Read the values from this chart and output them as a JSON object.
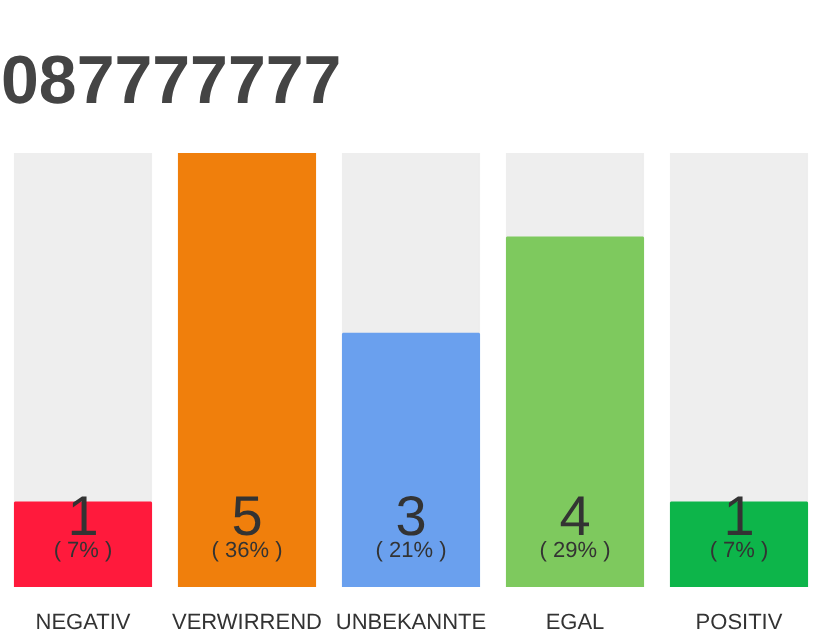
{
  "chart_data": {
    "type": "bar",
    "title": "087777777",
    "categories": [
      "NEGATIV",
      "VERWIRREND",
      "UNBEKANNTE",
      "EGAL",
      "POSITIV"
    ],
    "values": [
      7,
      36,
      21,
      29,
      7
    ],
    "colors": [
      "#ff1a3c",
      "#f07f0c",
      "#6aa0ee",
      "#7ec95e",
      "#0db54a"
    ],
    "value_labels": [
      "( 7% )",
      "( 36% )",
      "( 21% )",
      "( 29% )",
      "( 7% )"
    ],
    "annotations": [
      "1",
      "5",
      "3",
      "4",
      "1"
    ]
  }
}
